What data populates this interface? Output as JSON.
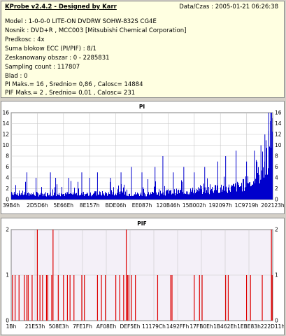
{
  "info": {
    "title": "KProbe v2.4.2 - Designed by Karr",
    "datetime": "Data/Czas : 2005-01-21 06:26:38",
    "lines": [
      "Model : 1-0-0-0 LITE-ON DVDRW SOHW-832S  CG4E",
      "Nosnik : DVD+R , MCC003 [Mitsubishi Chemical Corporation]",
      "Predkosc : 4x",
      "Suma blokow ECC (PI/PIF) : 8/1",
      "Zeskanowany obszar : 0 - 2285831",
      "Sampling count : 117807",
      "Blad : 0",
      "PI Maks.= 16 , Srednio= 0,86 , Calosc= 14884",
      "PIF Maks.= 2 , Srednio= 0,01 , Calosc= 231"
    ]
  },
  "colors": {
    "pi_bar": "#0000cc",
    "pif_bar": "#dd0000",
    "pi_plot_bg": "#ffffff",
    "pif_plot_bg": "#f4f0f8",
    "grid": "#c8c8c8",
    "title": "#00008b"
  },
  "chart_data": [
    {
      "type": "bar",
      "title": "PI",
      "ylim": [
        0,
        16
      ],
      "yticks": [
        "0",
        "2",
        "4",
        "6",
        "8",
        "10",
        "12",
        "14",
        "16"
      ],
      "xticks": [
        "39B4h",
        "2D5D6h",
        "5E66Eh",
        "8E157h",
        "BDE06h",
        "EE087h",
        "120B46h",
        "15B002h",
        "192097h",
        "1C9719h",
        "202123h"
      ],
      "grid": true,
      "baseline_profile": [
        [
          0,
          1.4
        ],
        [
          0.02,
          1.2
        ],
        [
          0.08,
          1.0
        ],
        [
          0.2,
          1.0
        ],
        [
          0.35,
          1.1
        ],
        [
          0.5,
          1.0
        ],
        [
          0.6,
          1.3
        ],
        [
          0.7,
          1.6
        ],
        [
          0.78,
          1.9
        ],
        [
          0.84,
          2.1
        ],
        [
          0.88,
          2.5
        ],
        [
          0.92,
          3.2
        ],
        [
          0.95,
          4.5
        ],
        [
          0.975,
          6.5
        ],
        [
          0.99,
          10
        ],
        [
          1.0,
          14
        ]
      ],
      "spikes": [
        [
          0.06,
          5
        ],
        [
          0.095,
          4
        ],
        [
          0.15,
          5
        ],
        [
          0.17,
          4
        ],
        [
          0.22,
          4
        ],
        [
          0.27,
          5
        ],
        [
          0.3,
          4
        ],
        [
          0.33,
          5
        ],
        [
          0.38,
          4
        ],
        [
          0.42,
          5
        ],
        [
          0.46,
          6
        ],
        [
          0.5,
          5
        ],
        [
          0.55,
          6
        ],
        [
          0.58,
          8
        ],
        [
          0.62,
          5
        ],
        [
          0.66,
          6
        ],
        [
          0.7,
          5
        ],
        [
          0.74,
          6
        ],
        [
          0.79,
          7
        ],
        [
          0.82,
          8
        ],
        [
          0.86,
          9
        ],
        [
          0.9,
          7
        ],
        [
          0.93,
          9
        ],
        [
          0.955,
          10
        ],
        [
          0.97,
          12
        ],
        [
          0.985,
          16
        ],
        [
          0.992,
          16
        ],
        [
          0.997,
          15
        ]
      ]
    },
    {
      "type": "bar",
      "title": "PIF",
      "ylim": [
        0,
        2
      ],
      "yticks": [
        "0",
        "1",
        "2"
      ],
      "xticks": [
        "1Bh",
        "21E53h",
        "508E3h",
        "7FE1Fh",
        "AF08Eh",
        "DEF5Eh",
        "11179Ch",
        "1492FFh",
        "17FB0Eh",
        "1B462Eh",
        "1EBE83h",
        "222D11h"
      ],
      "grid": true,
      "bars": [
        [
          0.005,
          1
        ],
        [
          0.015,
          1
        ],
        [
          0.03,
          1
        ],
        [
          0.05,
          1
        ],
        [
          0.06,
          1
        ],
        [
          0.065,
          1
        ],
        [
          0.08,
          1
        ],
        [
          0.1,
          2
        ],
        [
          0.11,
          1
        ],
        [
          0.12,
          1
        ],
        [
          0.135,
          1
        ],
        [
          0.14,
          1
        ],
        [
          0.155,
          1
        ],
        [
          0.16,
          2
        ],
        [
          0.18,
          1
        ],
        [
          0.2,
          1
        ],
        [
          0.215,
          1
        ],
        [
          0.225,
          1
        ],
        [
          0.24,
          1
        ],
        [
          0.27,
          1
        ],
        [
          0.28,
          1
        ],
        [
          0.33,
          1
        ],
        [
          0.345,
          1
        ],
        [
          0.36,
          1
        ],
        [
          0.4,
          1
        ],
        [
          0.415,
          1
        ],
        [
          0.43,
          1
        ],
        [
          0.44,
          2
        ],
        [
          0.445,
          1
        ],
        [
          0.45,
          1
        ],
        [
          0.46,
          1
        ],
        [
          0.475,
          1
        ],
        [
          0.56,
          1
        ],
        [
          0.61,
          1
        ],
        [
          0.615,
          1
        ],
        [
          0.7,
          1
        ],
        [
          0.72,
          1
        ],
        [
          0.73,
          1
        ],
        [
          0.82,
          1
        ],
        [
          0.83,
          1
        ],
        [
          0.9,
          1
        ],
        [
          0.915,
          1
        ],
        [
          0.96,
          1
        ],
        [
          0.995,
          2
        ],
        [
          0.998,
          1
        ]
      ]
    }
  ]
}
